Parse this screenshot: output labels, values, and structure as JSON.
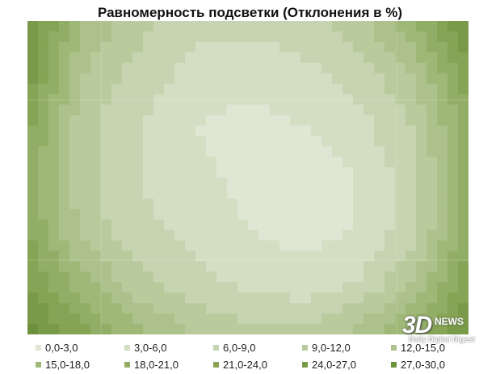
{
  "chart_data": {
    "type": "heatmap",
    "title": "Равномерность подсветки (Отклонения в %)",
    "grid": false,
    "legend_position": "bottom",
    "legend": [
      {
        "label": "0,0-3,0",
        "color": "#dfe6d3"
      },
      {
        "label": "3,0-6,0",
        "color": "#d3dec3"
      },
      {
        "label": "6,0-9,0",
        "color": "#c6d4b1"
      },
      {
        "label": "9,0-12,0",
        "color": "#b9cb9d"
      },
      {
        "label": "12,0-15,0",
        "color": "#acc18b"
      },
      {
        "label": "15,0-18,0",
        "color": "#9fb878"
      },
      {
        "label": "18,0-21,0",
        "color": "#92ae66"
      },
      {
        "label": "21,0-24,0",
        "color": "#85a455"
      },
      {
        "label": "24,0-27,0",
        "color": "#799a48"
      },
      {
        "label": "27,0-30,0",
        "color": "#6d903c"
      }
    ],
    "deviation_grid": [
      [
        27,
        15,
        10,
        7,
        7,
        8,
        11,
        18,
        27
      ],
      [
        26,
        12,
        8,
        5,
        4,
        5,
        7,
        12,
        24
      ],
      [
        22,
        10,
        6,
        3,
        2,
        3,
        5,
        9,
        20
      ],
      [
        20,
        10,
        6,
        4,
        2,
        1,
        3,
        8,
        19
      ],
      [
        21,
        11,
        7,
        5,
        3,
        2,
        3,
        8,
        20
      ],
      [
        24,
        16,
        10,
        7,
        5,
        4,
        6,
        12,
        23
      ],
      [
        28,
        22,
        16,
        12,
        10,
        10,
        13,
        19,
        28
      ]
    ]
  },
  "watermark": {
    "logo": "3D",
    "news": "NEWS",
    "subtitle": "Daily Digital Digest"
  }
}
